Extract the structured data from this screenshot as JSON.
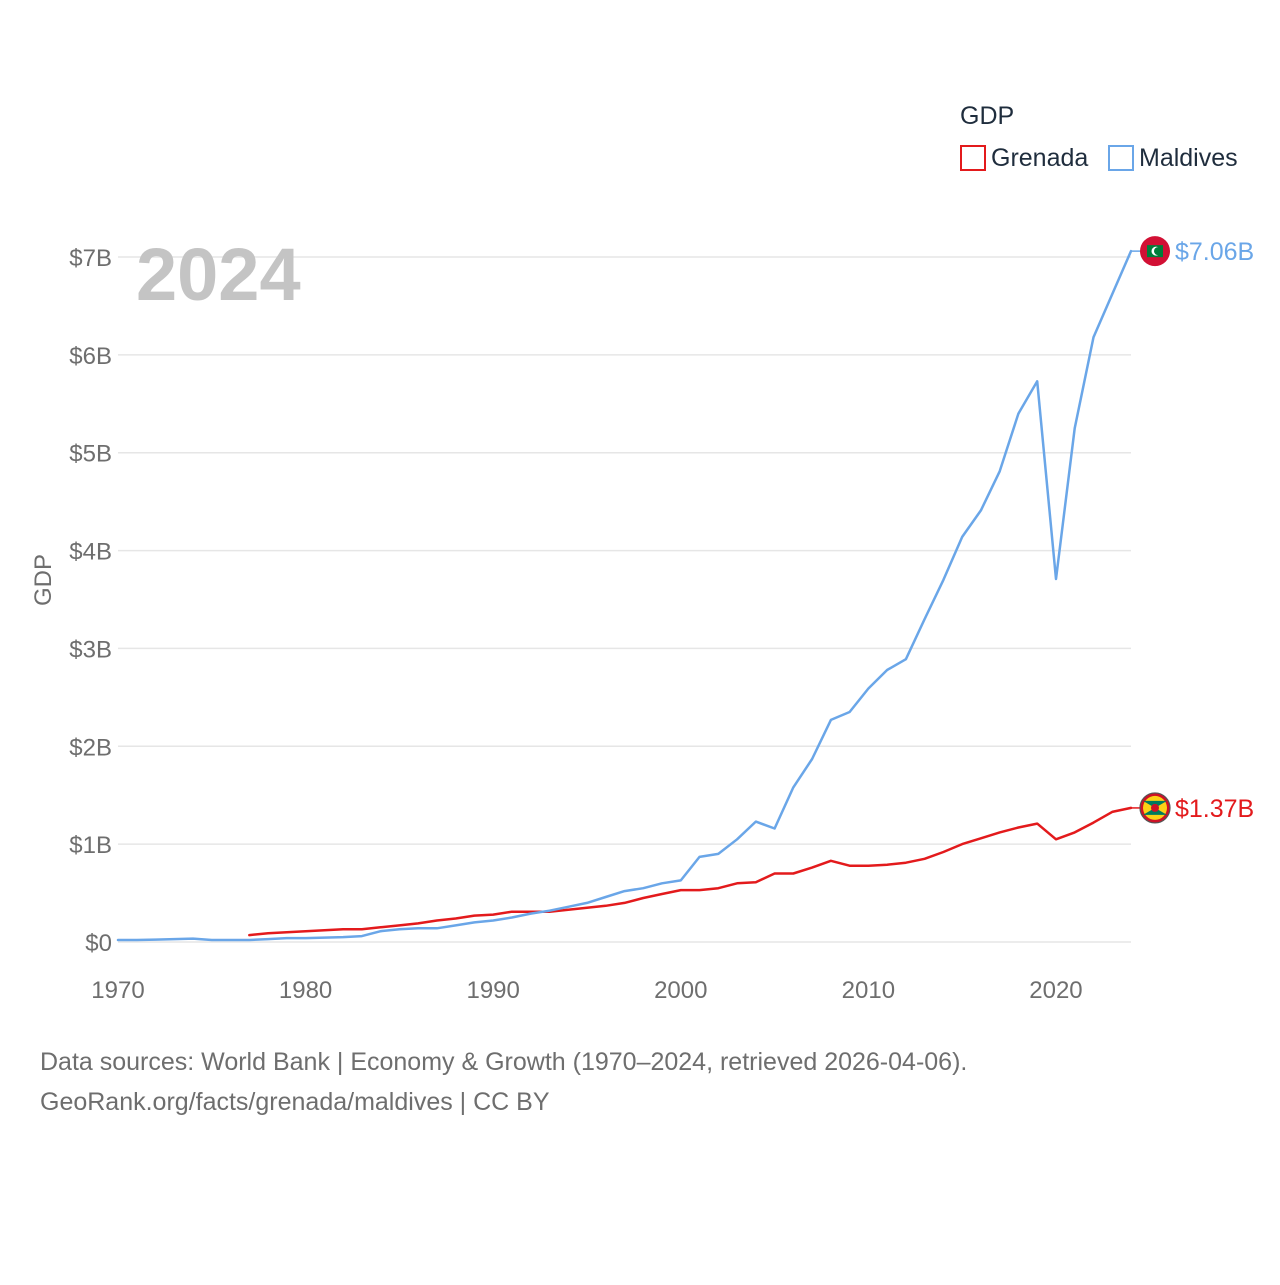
{
  "chart_data": {
    "type": "line",
    "title": "",
    "year_label": "2024",
    "ylabel": "GDP",
    "xlabel": "",
    "xlim": [
      1970,
      2024
    ],
    "ylim": [
      0,
      7
    ],
    "y_unit": "billion USD",
    "grid": true,
    "x_ticks": [
      {
        "value": 1970,
        "label": "1970"
      },
      {
        "value": 1980,
        "label": "1980"
      },
      {
        "value": 1990,
        "label": "1990"
      },
      {
        "value": 2000,
        "label": "2000"
      },
      {
        "value": 2010,
        "label": "2010"
      },
      {
        "value": 2020,
        "label": "2020"
      }
    ],
    "y_ticks": [
      {
        "value": 0,
        "label": "$0"
      },
      {
        "value": 1,
        "label": "$1B"
      },
      {
        "value": 2,
        "label": "$2B"
      },
      {
        "value": 3,
        "label": "$3B"
      },
      {
        "value": 4,
        "label": "$4B"
      },
      {
        "value": 5,
        "label": "$5B"
      },
      {
        "value": 6,
        "label": "$6B"
      },
      {
        "value": 7,
        "label": "$7B"
      }
    ],
    "legend": {
      "title": "GDP",
      "placement": "top-right",
      "entries": [
        "Grenada",
        "Maldives"
      ]
    },
    "series": [
      {
        "name": "Grenada",
        "color": "#e31a1c",
        "end_label": "$1.37B",
        "end_icon": "grenada-flag-icon",
        "x": [
          1977,
          1978,
          1979,
          1980,
          1981,
          1982,
          1983,
          1984,
          1985,
          1986,
          1987,
          1988,
          1989,
          1990,
          1991,
          1992,
          1993,
          1994,
          1995,
          1996,
          1997,
          1998,
          1999,
          2000,
          2001,
          2002,
          2003,
          2004,
          2005,
          2006,
          2007,
          2008,
          2009,
          2010,
          2011,
          2012,
          2013,
          2014,
          2015,
          2016,
          2017,
          2018,
          2019,
          2020,
          2021,
          2022,
          2023,
          2024
        ],
        "values": [
          0.07,
          0.09,
          0.1,
          0.11,
          0.12,
          0.13,
          0.13,
          0.15,
          0.17,
          0.19,
          0.22,
          0.24,
          0.27,
          0.28,
          0.31,
          0.31,
          0.31,
          0.33,
          0.35,
          0.37,
          0.4,
          0.45,
          0.49,
          0.53,
          0.53,
          0.55,
          0.6,
          0.61,
          0.7,
          0.7,
          0.76,
          0.83,
          0.78,
          0.78,
          0.79,
          0.81,
          0.85,
          0.92,
          1.0,
          1.06,
          1.12,
          1.17,
          1.21,
          1.05,
          1.12,
          1.22,
          1.33,
          1.37
        ]
      },
      {
        "name": "Maldives",
        "color": "#6aa6e8",
        "end_label": "$7.06B",
        "end_icon": "maldives-flag-icon",
        "x": [
          1970,
          1971,
          1972,
          1973,
          1974,
          1975,
          1976,
          1977,
          1978,
          1979,
          1980,
          1981,
          1982,
          1983,
          1984,
          1985,
          1986,
          1987,
          1988,
          1989,
          1990,
          1991,
          1992,
          1993,
          1994,
          1995,
          1996,
          1997,
          1998,
          1999,
          2000,
          2001,
          2002,
          2003,
          2004,
          2005,
          2006,
          2007,
          2008,
          2009,
          2010,
          2011,
          2012,
          2013,
          2014,
          2015,
          2016,
          2017,
          2018,
          2019,
          2020,
          2021,
          2022,
          2023,
          2024
        ],
        "values": [
          0.02,
          0.02,
          0.025,
          0.03,
          0.035,
          0.02,
          0.02,
          0.02,
          0.03,
          0.04,
          0.04,
          0.045,
          0.05,
          0.06,
          0.11,
          0.13,
          0.14,
          0.14,
          0.17,
          0.2,
          0.22,
          0.25,
          0.29,
          0.32,
          0.36,
          0.4,
          0.46,
          0.52,
          0.55,
          0.6,
          0.63,
          0.87,
          0.9,
          1.05,
          1.23,
          1.16,
          1.58,
          1.87,
          2.27,
          2.35,
          2.59,
          2.78,
          2.89,
          3.3,
          3.7,
          4.14,
          4.41,
          4.81,
          5.4,
          5.73,
          3.71,
          5.25,
          6.18,
          6.62,
          7.06
        ]
      }
    ]
  },
  "source": {
    "line1": "Data sources: World Bank | Economy & Growth (1970–2024, retrieved 2026-04-06).",
    "line2": "GeoRank.org/facts/grenada/maldives | CC BY"
  }
}
